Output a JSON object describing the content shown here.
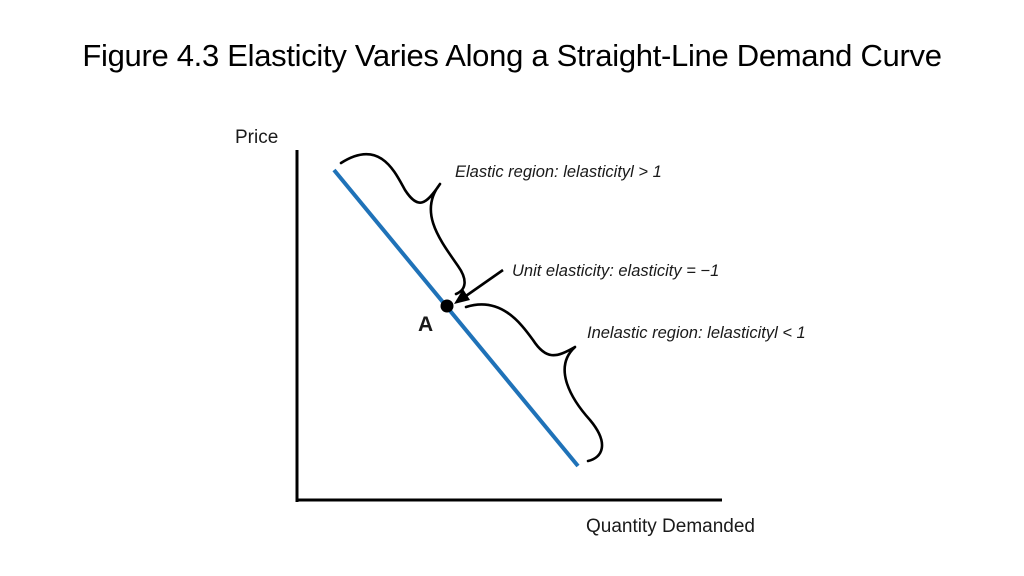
{
  "title": "Figure 4.3 Elasticity Varies Along a Straight-Line Demand Curve",
  "axes": {
    "y_label": "Price",
    "x_label": "Quantity Demanded"
  },
  "curve_color": "#1f72b8",
  "point": {
    "label": "A"
  },
  "annotations": {
    "elastic": "Elastic region: lelasticityl > 1",
    "unit": "Unit elasticity: elasticity = −1",
    "inelastic": "Inelastic region: lelasticityl < 1"
  }
}
